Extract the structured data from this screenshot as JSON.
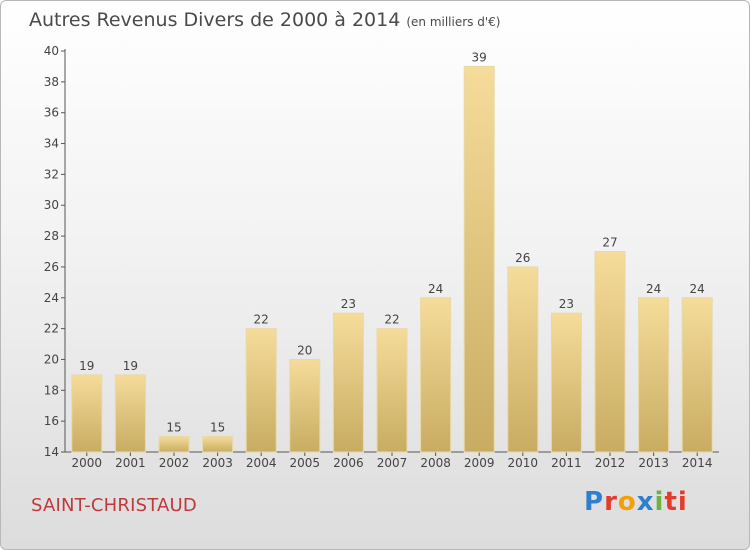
{
  "title": "Autres Revenus Divers de 2000 à 2014",
  "subtitle": "(en milliers d'€)",
  "commune": "SAINT-CHRISTAUD",
  "logo": {
    "text": "Proxiti",
    "letters": [
      "P",
      "r",
      "o",
      "x",
      "i",
      "ti"
    ]
  },
  "colors": {
    "bar_top": "#f5dc9a",
    "bar_bottom": "#c8ac62",
    "commune": "#c0393b"
  },
  "chart_data": {
    "type": "bar",
    "categories": [
      "2000",
      "2001",
      "2002",
      "2003",
      "2004",
      "2005",
      "2006",
      "2007",
      "2008",
      "2009",
      "2010",
      "2011",
      "2012",
      "2013",
      "2014"
    ],
    "values": [
      19,
      19,
      15,
      15,
      22,
      20,
      23,
      22,
      24,
      39,
      26,
      23,
      27,
      24,
      24
    ],
    "title": "Autres Revenus Divers de 2000 à 2014",
    "ylim": [
      14,
      40
    ],
    "yticks": [
      14,
      16,
      18,
      20,
      22,
      24,
      26,
      28,
      30,
      32,
      34,
      36,
      38,
      40
    ],
    "grid": false,
    "data_labels": true
  }
}
